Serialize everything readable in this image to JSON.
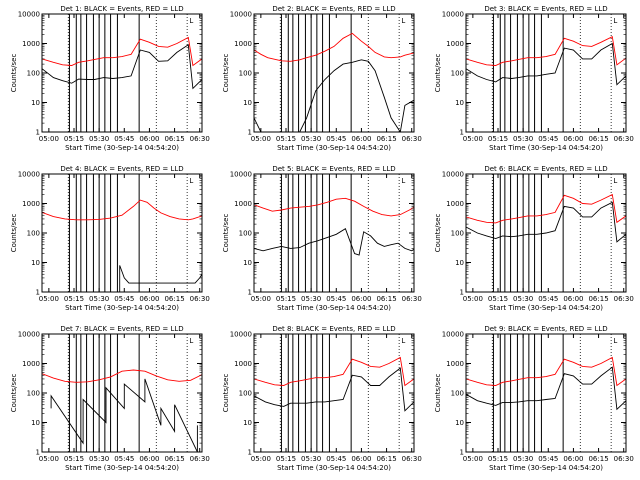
{
  "chart_data": [
    {
      "type": "line",
      "title": "Det 1: BLACK = Events, RED = LLD",
      "xlabel": "Start Time (30-Sep-14 04:54:20)",
      "ylabel": "Counts/sec",
      "yscale": "log",
      "ylim": [
        1,
        10000
      ],
      "y_ticks": [
        "1",
        "10",
        "100",
        "1000",
        "10000"
      ],
      "x_ticks": [
        "05:00",
        "05:15",
        "05:30",
        "05:45",
        "06:00",
        "06:15",
        "06:30"
      ],
      "legend_mark": "L",
      "series": [
        {
          "name": "BLACK",
          "color": "#000000",
          "x": [
            0,
            5,
            9,
            13,
            16,
            20,
            23,
            27,
            31,
            35,
            39,
            43,
            47,
            51,
            55,
            59,
            64,
            66,
            70
          ],
          "y": [
            140,
            70,
            55,
            45,
            62,
            60,
            60,
            70,
            65,
            70,
            80,
            600,
            500,
            250,
            260,
            500,
            900,
            30,
            60
          ]
        },
        {
          "name": "RED",
          "color": "#ff0000",
          "x": [
            0,
            5,
            9,
            13,
            16,
            20,
            23,
            27,
            31,
            35,
            39,
            43,
            47,
            51,
            55,
            59,
            64,
            66,
            70
          ],
          "y": [
            300,
            230,
            190,
            180,
            230,
            260,
            290,
            330,
            330,
            360,
            430,
            1400,
            1100,
            800,
            750,
            1000,
            1600,
            180,
            300
          ]
        }
      ]
    },
    {
      "type": "line",
      "title": "Det 2: BLACK = Events, RED = LLD",
      "xlabel": "Start Time (30-Sep-14 04:54:20)",
      "ylabel": "Counts/sec",
      "yscale": "log",
      "ylim": [
        1,
        10000
      ],
      "y_ticks": [
        "1",
        "10",
        "100",
        "1000",
        "10000"
      ],
      "x_ticks": [
        "05:00",
        "05:15",
        "05:30",
        "05:45",
        "06:00",
        "06:15",
        "06:30"
      ],
      "legend_mark": "L",
      "series": [
        {
          "name": "BLACK",
          "color": "#000000",
          "x": [
            0,
            3,
            6,
            12,
            16,
            20,
            23,
            27,
            31,
            35,
            39,
            43,
            47,
            50,
            53,
            57,
            60,
            64,
            66,
            70
          ],
          "y": [
            3,
            1,
            1,
            1,
            1,
            1,
            3,
            25,
            60,
            120,
            200,
            230,
            280,
            250,
            120,
            15,
            3,
            1,
            8,
            12
          ]
        },
        {
          "name": "RED",
          "color": "#ff0000",
          "x": [
            0,
            3,
            6,
            12,
            16,
            20,
            23,
            27,
            31,
            35,
            39,
            43,
            47,
            50,
            53,
            57,
            60,
            64,
            66,
            70
          ],
          "y": [
            600,
            430,
            330,
            260,
            250,
            280,
            330,
            400,
            550,
            800,
            1500,
            2200,
            1200,
            800,
            500,
            350,
            330,
            350,
            400,
            480
          ]
        }
      ]
    },
    {
      "type": "line",
      "title": "Det 3: BLACK = Events, RED = LLD",
      "xlabel": "Start Time (30-Sep-14 04:54:20)",
      "ylabel": "Counts/sec",
      "yscale": "log",
      "ylim": [
        1,
        10000
      ],
      "y_ticks": [
        "1",
        "10",
        "100",
        "1000",
        "10000"
      ],
      "x_ticks": [
        "05:00",
        "05:15",
        "05:30",
        "05:45",
        "06:00",
        "06:15",
        "06:30"
      ],
      "legend_mark": "L",
      "series": [
        {
          "name": "BLACK",
          "color": "#000000",
          "x": [
            0,
            5,
            9,
            13,
            16,
            20,
            23,
            27,
            31,
            35,
            39,
            43,
            47,
            51,
            55,
            59,
            64,
            66,
            70
          ],
          "y": [
            140,
            80,
            60,
            50,
            70,
            65,
            70,
            80,
            80,
            90,
            100,
            700,
            600,
            300,
            300,
            600,
            1000,
            40,
            80
          ]
        },
        {
          "name": "RED",
          "color": "#ff0000",
          "x": [
            0,
            5,
            9,
            13,
            16,
            20,
            23,
            27,
            31,
            35,
            39,
            43,
            47,
            51,
            55,
            59,
            64,
            66,
            70
          ],
          "y": [
            300,
            230,
            190,
            180,
            230,
            260,
            290,
            330,
            330,
            360,
            430,
            1500,
            1200,
            850,
            800,
            1100,
            1700,
            190,
            320
          ]
        }
      ]
    },
    {
      "type": "line",
      "title": "Det 4: BLACK = Events, RED = LLD",
      "xlabel": "Start Time (30-Sep-14 04:54:20)",
      "ylabel": "Counts/sec",
      "yscale": "log",
      "ylim": [
        1,
        10000
      ],
      "y_ticks": [
        "1",
        "10",
        "100",
        "1000",
        "10000"
      ],
      "x_ticks": [
        "05:00",
        "05:15",
        "05:30",
        "05:45",
        "06:00",
        "06:15",
        "06:30"
      ],
      "legend_mark": "L",
      "series": [
        {
          "name": "BLACK",
          "color": "#000000",
          "x": [
            34,
            34,
            36,
            38,
            67,
            69,
            70
          ],
          "y": [
            1,
            8,
            3,
            2,
            2,
            3,
            4
          ]
        },
        {
          "name": "RED",
          "color": "#ff0000",
          "x": [
            0,
            5,
            10,
            15,
            20,
            25,
            30,
            35,
            40,
            43,
            46,
            49,
            52,
            56,
            60,
            64,
            66,
            70
          ],
          "y": [
            500,
            360,
            300,
            280,
            280,
            290,
            320,
            400,
            800,
            1300,
            1100,
            700,
            480,
            360,
            300,
            280,
            300,
            380
          ]
        }
      ]
    },
    {
      "type": "line",
      "title": "Det 5: BLACK = Events, RED = LLD",
      "xlabel": "Start Time (30-Sep-14 04:54:20)",
      "ylabel": "Counts/sec",
      "yscale": "log",
      "ylim": [
        1,
        10000
      ],
      "y_ticks": [
        "1",
        "10",
        "100",
        "1000",
        "10000"
      ],
      "x_ticks": [
        "05:00",
        "05:15",
        "05:30",
        "05:45",
        "06:00",
        "06:15",
        "06:30"
      ],
      "legend_mark": "L",
      "series": [
        {
          "name": "BLACK",
          "color": "#000000",
          "x": [
            0,
            4,
            8,
            12,
            16,
            20,
            24,
            28,
            32,
            36,
            40,
            44,
            46,
            48,
            51,
            54,
            57,
            60,
            63,
            66,
            69,
            70
          ],
          "y": [
            30,
            25,
            30,
            35,
            30,
            32,
            45,
            55,
            70,
            90,
            140,
            20,
            18,
            110,
            80,
            45,
            35,
            40,
            45,
            30,
            25,
            28
          ]
        },
        {
          "name": "RED",
          "color": "#ff0000",
          "x": [
            0,
            4,
            8,
            12,
            16,
            20,
            24,
            28,
            32,
            36,
            40,
            44,
            48,
            52,
            56,
            60,
            64,
            68,
            70
          ],
          "y": [
            900,
            700,
            550,
            600,
            700,
            750,
            800,
            900,
            1100,
            1400,
            1500,
            1200,
            800,
            550,
            420,
            380,
            420,
            600,
            750
          ]
        }
      ]
    },
    {
      "type": "line",
      "title": "Det 6: BLACK = Events, RED = LLD",
      "xlabel": "Start Time (30-Sep-14 04:54:20)",
      "ylabel": "Counts/sec",
      "yscale": "log",
      "ylim": [
        1,
        10000
      ],
      "y_ticks": [
        "1",
        "10",
        "100",
        "1000",
        "10000"
      ],
      "x_ticks": [
        "05:00",
        "05:15",
        "05:30",
        "05:45",
        "06:00",
        "06:15",
        "06:30"
      ],
      "legend_mark": "L",
      "series": [
        {
          "name": "BLACK",
          "color": "#000000",
          "x": [
            0,
            5,
            9,
            13,
            16,
            20,
            23,
            27,
            31,
            35,
            39,
            43,
            47,
            51,
            55,
            59,
            64,
            66,
            70
          ],
          "y": [
            160,
            100,
            80,
            65,
            80,
            75,
            80,
            90,
            90,
            100,
            120,
            800,
            700,
            350,
            350,
            700,
            1100,
            50,
            90
          ]
        },
        {
          "name": "RED",
          "color": "#ff0000",
          "x": [
            0,
            5,
            9,
            13,
            16,
            20,
            23,
            27,
            31,
            35,
            39,
            43,
            47,
            51,
            55,
            59,
            64,
            66,
            70
          ],
          "y": [
            350,
            270,
            230,
            220,
            270,
            300,
            330,
            380,
            380,
            420,
            500,
            1900,
            1500,
            1000,
            950,
            1300,
            2000,
            230,
            380
          ]
        }
      ]
    },
    {
      "type": "line",
      "title": "Det 7: BLACK = Events, RED = LLD",
      "xlabel": "Start Time (30-Sep-14 04:54:20)",
      "ylabel": "Counts/sec",
      "yscale": "log",
      "ylim": [
        1,
        10000
      ],
      "y_ticks": [
        "1",
        "10",
        "100",
        "1000",
        "10000"
      ],
      "x_ticks": [
        "05:00",
        "05:15",
        "05:30",
        "05:45",
        "06:00",
        "06:15",
        "06:30"
      ],
      "legend_mark": "L",
      "series": [
        {
          "name": "BLACK",
          "color": "#000000",
          "x": [
            4,
            4,
            18,
            18,
            28,
            28,
            36,
            36,
            45,
            45,
            52,
            52,
            58,
            58,
            68,
            68
          ],
          "y": [
            30,
            80,
            2,
            60,
            10,
            150,
            30,
            200,
            50,
            300,
            8,
            30,
            5,
            40,
            1,
            8
          ]
        },
        {
          "name": "RED",
          "color": "#ff0000",
          "x": [
            0,
            5,
            10,
            15,
            20,
            25,
            30,
            35,
            40,
            45,
            50,
            55,
            60,
            65,
            70
          ],
          "y": [
            450,
            320,
            250,
            230,
            240,
            280,
            350,
            550,
            600,
            550,
            380,
            280,
            250,
            270,
            420
          ]
        }
      ]
    },
    {
      "type": "line",
      "title": "Det 8: BLACK = Events, RED = LLD",
      "xlabel": "Start Time (30-Sep-14 04:54:20)",
      "ylabel": "Counts/sec",
      "yscale": "log",
      "ylim": [
        1,
        10000
      ],
      "y_ticks": [
        "1",
        "10",
        "100",
        "1000",
        "10000"
      ],
      "x_ticks": [
        "05:00",
        "05:15",
        "05:30",
        "05:45",
        "06:00",
        "06:15",
        "06:30"
      ],
      "legend_mark": "L",
      "series": [
        {
          "name": "BLACK",
          "color": "#000000",
          "x": [
            0,
            5,
            9,
            13,
            16,
            20,
            23,
            27,
            31,
            35,
            39,
            43,
            47,
            51,
            55,
            59,
            64,
            66,
            70
          ],
          "y": [
            80,
            50,
            40,
            35,
            45,
            45,
            45,
            50,
            50,
            55,
            60,
            400,
            350,
            180,
            180,
            350,
            700,
            25,
            50
          ]
        },
        {
          "name": "RED",
          "color": "#ff0000",
          "x": [
            0,
            5,
            9,
            13,
            16,
            20,
            23,
            27,
            31,
            35,
            39,
            43,
            47,
            51,
            55,
            59,
            64,
            66,
            70
          ],
          "y": [
            300,
            230,
            190,
            180,
            230,
            260,
            290,
            330,
            330,
            360,
            430,
            1400,
            1100,
            800,
            750,
            1000,
            1600,
            180,
            300
          ]
        }
      ]
    },
    {
      "type": "line",
      "title": "Det 9: BLACK = Events, RED = LLD",
      "xlabel": "Start Time (30-Sep-14 04:54:20)",
      "ylabel": "Counts/sec",
      "yscale": "log",
      "ylim": [
        1,
        10000
      ],
      "y_ticks": [
        "1",
        "10",
        "100",
        "1000",
        "10000"
      ],
      "x_ticks": [
        "05:00",
        "05:15",
        "05:30",
        "05:45",
        "06:00",
        "06:15",
        "06:30"
      ],
      "legend_mark": "L",
      "series": [
        {
          "name": "BLACK",
          "color": "#000000",
          "x": [
            0,
            5,
            9,
            13,
            16,
            20,
            23,
            27,
            31,
            35,
            39,
            43,
            47,
            51,
            55,
            59,
            64,
            66,
            70
          ],
          "y": [
            90,
            55,
            45,
            38,
            48,
            48,
            50,
            55,
            55,
            60,
            65,
            450,
            380,
            200,
            200,
            380,
            750,
            28,
            55
          ]
        },
        {
          "name": "RED",
          "color": "#ff0000",
          "x": [
            0,
            5,
            9,
            13,
            16,
            20,
            23,
            27,
            31,
            35,
            39,
            43,
            47,
            51,
            55,
            59,
            64,
            66,
            70
          ],
          "y": [
            300,
            230,
            190,
            180,
            230,
            260,
            290,
            330,
            330,
            360,
            430,
            1400,
            1100,
            800,
            750,
            1000,
            1600,
            180,
            300
          ]
        }
      ]
    }
  ]
}
